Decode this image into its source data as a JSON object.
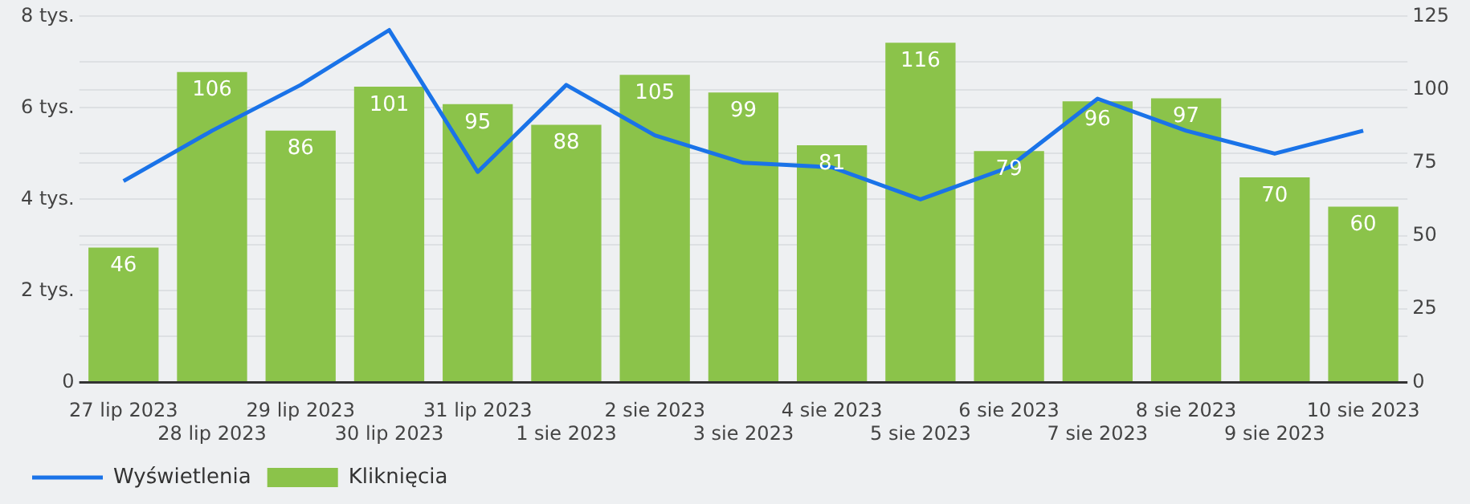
{
  "chart_data": {
    "type": "bar",
    "categories": [
      "27 lip 2023",
      "28 lip 2023",
      "29 lip 2023",
      "30 lip 2023",
      "31 lip 2023",
      "1 sie 2023",
      "2 sie 2023",
      "3 sie 2023",
      "4 sie 2023",
      "5 sie 2023",
      "6 sie 2023",
      "7 sie 2023",
      "8 sie 2023",
      "9 sie 2023",
      "10 sie 2023"
    ],
    "series": [
      {
        "name": "Wyświetlenia",
        "type": "line",
        "color": "#1a73e8",
        "values": [
          4.4,
          5.5,
          6.5,
          7.7,
          4.6,
          6.5,
          5.4,
          4.8,
          4.7,
          4.0,
          4.7,
          6.2,
          5.5,
          5.0,
          5.5
        ]
      },
      {
        "name": "Kliknięcia",
        "axis": "y2",
        "color": "#8bc34a",
        "values": [
          46,
          106,
          86,
          101,
          95,
          88,
          105,
          99,
          81,
          116,
          79,
          96,
          97,
          70,
          60
        ],
        "value_labels": [
          "46",
          "106",
          "86",
          "101",
          "95",
          "88",
          "105",
          "99",
          "81",
          "116",
          "79",
          "96",
          "97",
          "70",
          "60"
        ]
      }
    ],
    "ylim": [
      0,
      8
    ],
    "yticks": [
      0,
      {
        "value": 1,
        "label": null
      },
      {
        "value": 2,
        "label": "2 tys."
      },
      {
        "value": 3,
        "label": null
      },
      {
        "value": 4,
        "label": "4 tys."
      },
      {
        "value": 5,
        "label": null
      },
      {
        "value": 6,
        "label": "6 tys."
      },
      {
        "value": 7,
        "label": null
      },
      {
        "value": 8,
        "label": "8 tys."
      }
    ],
    "y2lim": [
      0,
      125
    ],
    "y2ticks": [
      0,
      25,
      50,
      75,
      100,
      125
    ],
    "grid": true,
    "legend": "bottom left",
    "marker": "none",
    "line_style": "solid"
  }
}
